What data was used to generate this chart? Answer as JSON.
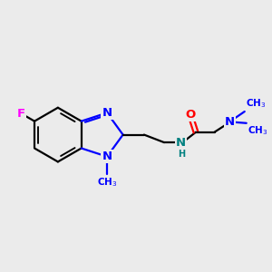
{
  "bg_color": "#ebebeb",
  "bond_color": "#000000",
  "bond_width": 1.6,
  "atom_colors": {
    "N": "#0000ff",
    "O": "#ff0000",
    "F": "#ff00ff",
    "NH": "#008080",
    "C": "#000000"
  },
  "font_size": 9.5,
  "font_size_small": 7.5,
  "xlim": [
    0,
    10
  ],
  "ylim": [
    0,
    10
  ]
}
